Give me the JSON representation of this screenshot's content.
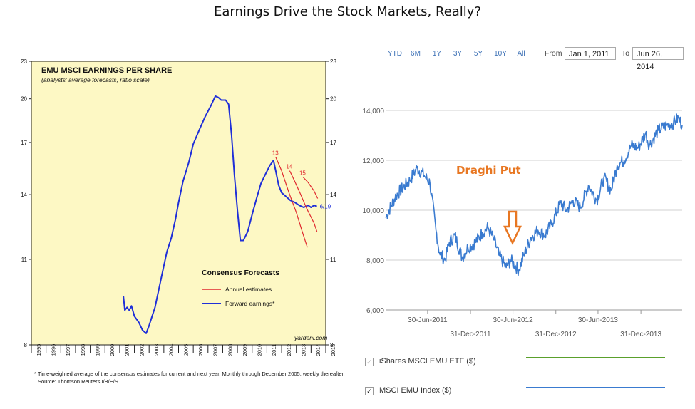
{
  "title": "Earnings Drive the Stock Markets, Really?",
  "colors": {
    "left_bg": "#fdf8c4",
    "annual": "#e0282e",
    "forward": "#1f2fd8",
    "msci_line": "#3a7bd0",
    "etf_line": "#5aa02c",
    "draghi": "#e87722"
  },
  "chart_data": [
    {
      "type": "line",
      "title": "EMU MSCI EARNINGS PER SHARE",
      "subtitle": "(analysts' average forecasts, ratio scale)",
      "y_scale": "log",
      "ylim": [
        8,
        23
      ],
      "y_ticks": [
        "8",
        "11",
        "14",
        "17",
        "20",
        "23"
      ],
      "x_ticks": [
        "1995",
        "1996",
        "1997",
        "1998",
        "1999",
        "2000",
        "2001",
        "2002",
        "2003",
        "2004",
        "2005",
        "2006",
        "2007",
        "2008",
        "2009",
        "2010",
        "2011",
        "2012",
        "2013",
        "2014",
        "2015"
      ],
      "legend_title": "Consensus Forecasts",
      "series": [
        {
          "name": "Forward earnings*",
          "color": "#1f2fd8",
          "points": [
            [
              2001.25,
              9.6
            ],
            [
              2001.35,
              9.1
            ],
            [
              2001.5,
              9.2
            ],
            [
              2001.65,
              9.1
            ],
            [
              2001.8,
              9.25
            ],
            [
              2002.0,
              8.9
            ],
            [
              2002.3,
              8.7
            ],
            [
              2002.55,
              8.45
            ],
            [
              2002.8,
              8.35
            ],
            [
              2003.0,
              8.6
            ],
            [
              2003.4,
              9.2
            ],
            [
              2003.8,
              10.2
            ],
            [
              2004.2,
              11.3
            ],
            [
              2004.5,
              11.9
            ],
            [
              2004.8,
              12.8
            ],
            [
              2005.0,
              13.6
            ],
            [
              2005.3,
              14.7
            ],
            [
              2005.7,
              15.8
            ],
            [
              2006.0,
              16.9
            ],
            [
              2006.4,
              17.8
            ],
            [
              2006.8,
              18.7
            ],
            [
              2007.2,
              19.5
            ],
            [
              2007.5,
              20.2
            ],
            [
              2007.7,
              20.1
            ],
            [
              2007.9,
              19.9
            ],
            [
              2008.2,
              19.9
            ],
            [
              2008.4,
              19.6
            ],
            [
              2008.6,
              17.5
            ],
            [
              2008.8,
              15.0
            ],
            [
              2009.0,
              13.2
            ],
            [
              2009.2,
              11.8
            ],
            [
              2009.4,
              11.8
            ],
            [
              2009.7,
              12.2
            ],
            [
              2010.0,
              13.0
            ],
            [
              2010.3,
              13.8
            ],
            [
              2010.6,
              14.6
            ],
            [
              2010.9,
              15.1
            ],
            [
              2011.2,
              15.6
            ],
            [
              2011.45,
              15.9
            ],
            [
              2011.6,
              15.3
            ],
            [
              2011.8,
              14.5
            ],
            [
              2012.0,
              14.1
            ],
            [
              2012.3,
              13.9
            ],
            [
              2012.6,
              13.7
            ],
            [
              2012.9,
              13.6
            ],
            [
              2013.2,
              13.45
            ],
            [
              2013.5,
              13.35
            ],
            [
              2013.8,
              13.45
            ],
            [
              2014.0,
              13.35
            ],
            [
              2014.2,
              13.45
            ],
            [
              2014.4,
              13.4
            ]
          ]
        },
        {
          "name": "Annual estimates",
          "color": "#e0282e",
          "segments": [
            {
              "label": "13",
              "points": [
                [
                  2011.6,
                  16.1
                ],
                [
                  2012.0,
                  15.3
                ],
                [
                  2012.5,
                  14.1
                ],
                [
                  2013.0,
                  13.1
                ],
                [
                  2013.4,
                  12.2
                ],
                [
                  2013.75,
                  11.5
                ]
              ]
            },
            {
              "label": "14",
              "points": [
                [
                  2012.55,
                  15.3
                ],
                [
                  2012.9,
                  14.7
                ],
                [
                  2013.3,
                  14.0
                ],
                [
                  2013.7,
                  13.3
                ],
                [
                  2014.2,
                  12.6
                ],
                [
                  2014.4,
                  12.2
                ]
              ]
            },
            {
              "label": "15",
              "points": [
                [
                  2013.45,
                  14.95
                ],
                [
                  2013.8,
                  14.65
                ],
                [
                  2014.2,
                  14.2
                ],
                [
                  2014.45,
                  13.8
                ]
              ]
            }
          ]
        }
      ],
      "end_label": "6/19",
      "watermark": "yardeni.com",
      "footnote": "*  Time-weighted average of the consensus estimates for current and next year. Monthly through December 2005, weekly thereafter.",
      "source": "Source: Thomson Reuters I/B/E/S."
    },
    {
      "type": "line",
      "title": "",
      "range_buttons": [
        "YTD",
        "6M",
        "1Y",
        "3Y",
        "5Y",
        "10Y",
        "All"
      ],
      "from_label": "From",
      "from_value": "Jan 1, 2011",
      "to_label": "To",
      "to_value": "Jun 26, 2014",
      "ylim": [
        6000,
        14000
      ],
      "y_ticks": [
        "6,000",
        "8,000",
        "10,000",
        "12,000",
        "14,000"
      ],
      "x_ticks_upper": [
        "30-Jun-2011",
        "30-Jun-2012",
        "30-Jun-2013"
      ],
      "x_ticks_lower": [
        "31-Dec-2011",
        "31-Dec-2012",
        "31-Dec-2013"
      ],
      "annotation": "Draghi Put",
      "series": [
        {
          "name": "MSCI EMU Index ($)",
          "color": "#3a7bd0",
          "checked": true,
          "x": [
            "2011-01-01",
            "2011-02-15",
            "2011-04-15",
            "2011-05-15",
            "2011-06-15",
            "2011-07-10",
            "2011-08-05",
            "2011-08-20",
            "2011-09-12",
            "2011-10-01",
            "2011-10-25",
            "2011-11-25",
            "2011-12-20",
            "2012-01-20",
            "2012-02-20",
            "2012-03-15",
            "2012-04-10",
            "2012-05-01",
            "2012-06-01",
            "2012-06-20",
            "2012-07-25",
            "2012-08-20",
            "2012-09-15",
            "2012-10-15",
            "2012-11-15",
            "2012-12-15",
            "2013-01-20",
            "2013-02-15",
            "2013-03-15",
            "2013-04-15",
            "2013-05-20",
            "2013-06-25",
            "2013-07-25",
            "2013-08-25",
            "2013-09-20",
            "2013-10-20",
            "2013-11-20",
            "2013-12-20",
            "2014-01-20",
            "2014-02-05",
            "2014-03-15",
            "2014-04-20",
            "2014-05-20",
            "2014-06-10",
            "2014-06-26"
          ],
          "values": [
            9700,
            10600,
            11200,
            11700,
            11400,
            11100,
            9200,
            8300,
            8000,
            8700,
            9000,
            8100,
            8500,
            8700,
            9100,
            9300,
            8800,
            8200,
            7700,
            8000,
            7600,
            8300,
            8900,
            9200,
            9000,
            9500,
            10300,
            10000,
            10400,
            10100,
            11000,
            10400,
            11300,
            10800,
            11800,
            12000,
            12600,
            12500,
            13100,
            12600,
            13200,
            13400,
            13500,
            13700,
            13400
          ]
        },
        {
          "name": "iShares MSCI EMU ETF ($)",
          "color": "#5aa02c",
          "checked": false
        }
      ]
    }
  ]
}
